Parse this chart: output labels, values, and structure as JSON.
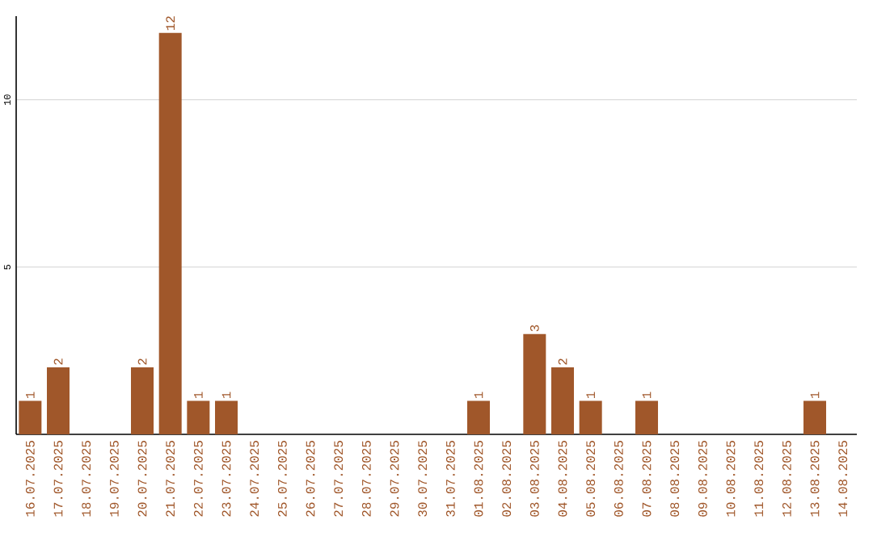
{
  "chart_data": {
    "type": "bar",
    "categories": [
      "16.07.2025",
      "17.07.2025",
      "18.07.2025",
      "19.07.2025",
      "20.07.2025",
      "21.07.2025",
      "22.07.2025",
      "23.07.2025",
      "24.07.2025",
      "25.07.2025",
      "26.07.2025",
      "27.07.2025",
      "28.07.2025",
      "29.07.2025",
      "30.07.2025",
      "31.07.2025",
      "01.08.2025",
      "02.08.2025",
      "03.08.2025",
      "04.08.2025",
      "05.08.2025",
      "06.08.2025",
      "07.08.2025",
      "08.08.2025",
      "09.08.2025",
      "10.08.2025",
      "11.08.2025",
      "12.08.2025",
      "13.08.2025",
      "14.08.2025"
    ],
    "values": [
      1,
      2,
      0,
      0,
      2,
      12,
      1,
      1,
      0,
      0,
      0,
      0,
      0,
      0,
      0,
      0,
      1,
      0,
      3,
      2,
      1,
      0,
      1,
      0,
      0,
      0,
      0,
      0,
      1,
      0
    ],
    "value_labels": [
      "1",
      "2",
      null,
      null,
      "2",
      "12",
      "1",
      "1",
      null,
      null,
      null,
      null,
      null,
      null,
      null,
      null,
      "1",
      null,
      "3",
      "2",
      "1",
      null,
      "1",
      null,
      null,
      null,
      null,
      null,
      "1",
      null
    ],
    "color": "#a0572a",
    "ylim": [
      0,
      12.5
    ],
    "yticks": [
      5,
      10
    ],
    "grid": "y"
  }
}
